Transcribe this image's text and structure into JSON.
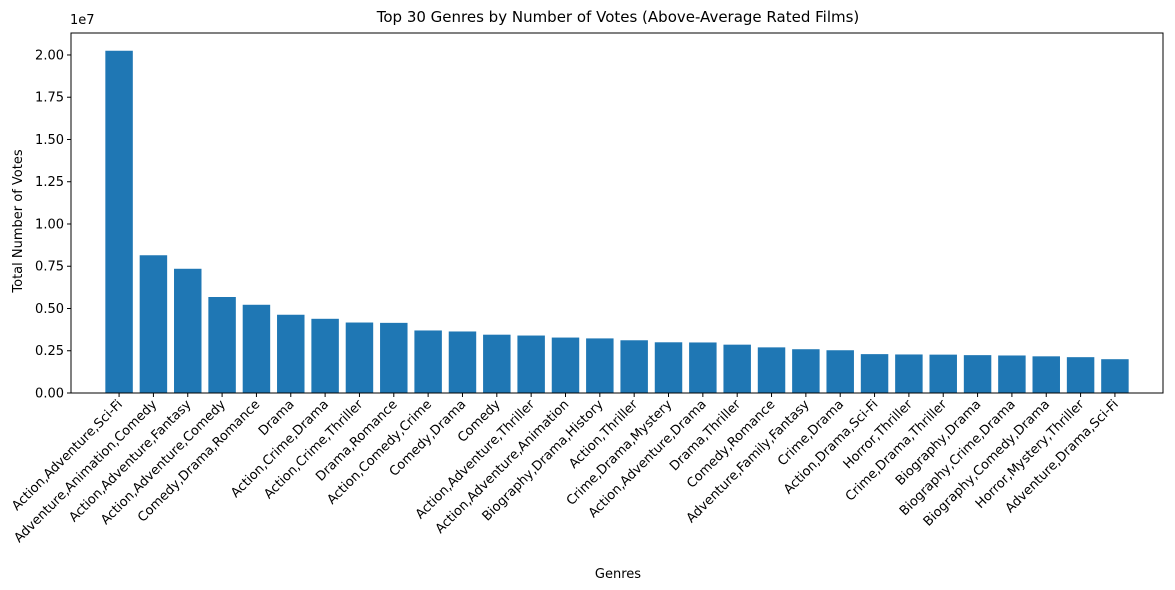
{
  "chart_data": {
    "type": "bar",
    "title": "Top 30 Genres by Number of Votes (Above-Average Rated Films)",
    "xlabel": "Genres",
    "ylabel": "Total Number of Votes",
    "offset_text": "1e7",
    "ylim": [
      0,
      21300000
    ],
    "yticks": [
      0,
      2500000,
      5000000,
      7500000,
      10000000,
      12500000,
      15000000,
      17500000,
      20000000
    ],
    "ytick_labels": [
      "0.00",
      "0.25",
      "0.50",
      "0.75",
      "1.00",
      "1.25",
      "1.50",
      "1.75",
      "2.00"
    ],
    "bar_color": "#1f77b4",
    "grid": false,
    "categories": [
      "Action,Adventure,Sci-Fi",
      "Adventure,Animation,Comedy",
      "Action,Adventure,Fantasy",
      "Action,Adventure,Comedy",
      "Comedy,Drama,Romance",
      "Drama",
      "Action,Crime,Drama",
      "Action,Crime,Thriller",
      "Drama,Romance",
      "Action,Comedy,Crime",
      "Comedy,Drama",
      "Comedy",
      "Action,Adventure,Thriller",
      "Action,Adventure,Animation",
      "Biography,Drama,History",
      "Action,Thriller",
      "Crime,Drama,Mystery",
      "Action,Adventure,Drama",
      "Drama,Thriller",
      "Comedy,Romance",
      "Adventure,Family,Fantasy",
      "Crime,Drama",
      "Action,Drama,Sci-Fi",
      "Horror,Thriller",
      "Crime,Drama,Thriller",
      "Biography,Drama",
      "Biography,Crime,Drama",
      "Biography,Comedy,Drama",
      "Horror,Mystery,Thriller",
      "Adventure,Drama,Sci-Fi"
    ],
    "values": [
      20250000,
      8150000,
      7350000,
      5680000,
      5220000,
      4630000,
      4390000,
      4170000,
      4150000,
      3700000,
      3640000,
      3450000,
      3400000,
      3280000,
      3230000,
      3120000,
      3000000,
      2990000,
      2860000,
      2700000,
      2590000,
      2530000,
      2300000,
      2280000,
      2270000,
      2240000,
      2220000,
      2170000,
      2120000,
      2000000
    ]
  }
}
